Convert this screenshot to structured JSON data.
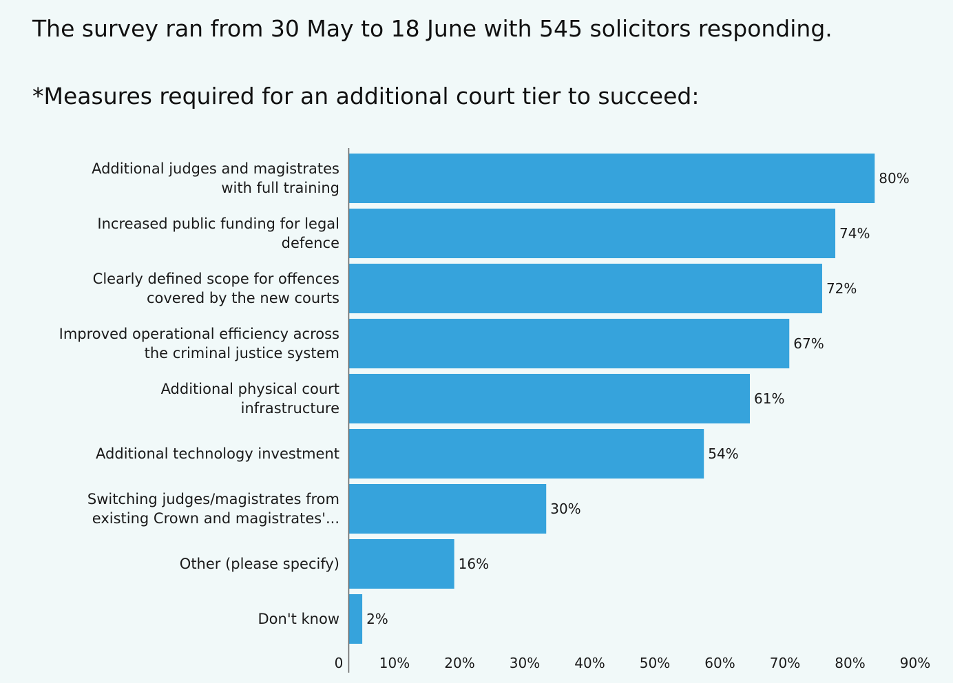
{
  "header": {
    "survey_note": "The survey ran from 30 May to 18 June with 545 solicitors responding.",
    "chart_title": "*Measures required for an additional court tier to succeed:"
  },
  "chart_data": {
    "type": "bar",
    "orientation": "horizontal",
    "title": "*Measures required for an additional court tier to succeed:",
    "xlabel": "",
    "ylabel": "",
    "categories": [
      [
        "Additional judges and magistrates",
        "with full training"
      ],
      [
        "Increased public funding for legal",
        "defence"
      ],
      [
        "Clearly defined scope for offences",
        "covered by the new courts"
      ],
      [
        "Improved operational efficiency across",
        "the criminal justice system"
      ],
      [
        "Additional physical court",
        "infrastructure"
      ],
      [
        "Additional technology investment"
      ],
      [
        "Switching judges/magistrates from",
        "existing Crown and magistrates'..."
      ],
      [
        "Other (please specify)"
      ],
      [
        "Don't know"
      ]
    ],
    "values": [
      80,
      74,
      72,
      67,
      61,
      54,
      30,
      16,
      2
    ],
    "value_labels": [
      "80%",
      "74%",
      "72%",
      "67%",
      "61%",
      "54%",
      "30%",
      "16%",
      "2%"
    ],
    "xlim": [
      0,
      90
    ],
    "x_ticks": [
      0,
      10,
      20,
      30,
      40,
      50,
      60,
      70,
      80,
      90
    ],
    "x_tick_labels": [
      "0",
      "10%",
      "20%",
      "30%",
      "40%",
      "50%",
      "60%",
      "70%",
      "80%",
      "90%"
    ],
    "grid": false,
    "legend": "none",
    "bar_color": "#36a3dc",
    "axis_color": "#666666"
  }
}
